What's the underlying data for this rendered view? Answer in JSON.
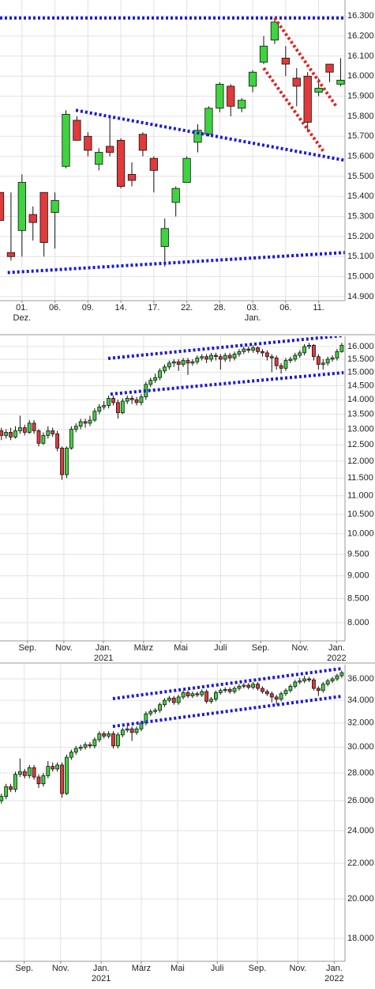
{
  "chart_data": [
    {
      "type": "candlestick",
      "log": false,
      "grid": true,
      "up_color": "#3fd33f",
      "down_color": "#e03a3a",
      "xlim": [
        0,
        31.4
      ],
      "ylim": [
        14880,
        16380
      ],
      "yticks": [
        {
          "value": 16300,
          "label": "16.300"
        },
        {
          "value": 16200,
          "label": "16.200"
        },
        {
          "value": 16100,
          "label": "16.100"
        },
        {
          "value": 16000,
          "label": "16.000"
        },
        {
          "value": 15900,
          "label": "15.900"
        },
        {
          "value": 15800,
          "label": "15.800"
        },
        {
          "value": 15700,
          "label": "15.700"
        },
        {
          "value": 15600,
          "label": "15.600"
        },
        {
          "value": 15500,
          "label": "15.500"
        },
        {
          "value": 15400,
          "label": "15.400"
        },
        {
          "value": 15300,
          "label": "15.300"
        },
        {
          "value": 15200,
          "label": "15.200"
        },
        {
          "value": 15100,
          "label": "15.100"
        },
        {
          "value": 15000,
          "label": "15.000"
        },
        {
          "value": 14900,
          "label": "14.900"
        }
      ],
      "xticks": [
        {
          "value": 2,
          "label": "01."
        },
        {
          "value": 5,
          "label": "06."
        },
        {
          "value": 8,
          "label": "09."
        },
        {
          "value": 11,
          "label": "14."
        },
        {
          "value": 14,
          "label": "17."
        },
        {
          "value": 17,
          "label": "22."
        },
        {
          "value": 20,
          "label": "28."
        },
        {
          "value": 23,
          "label": "03."
        },
        {
          "value": 26,
          "label": "06."
        },
        {
          "value": 29,
          "label": "11."
        }
      ],
      "xticks2": [
        {
          "value": 2,
          "label": "Dez."
        },
        {
          "value": 23,
          "label": "Jan."
        }
      ],
      "open": [
        15420,
        15120,
        15230,
        15310,
        15420,
        15320,
        15550,
        15780,
        15700,
        15560,
        15650,
        15680,
        15510,
        15710,
        15590,
        15150,
        15370,
        15470,
        15670,
        15710,
        15840,
        15950,
        15840,
        15950,
        16070,
        16180,
        16090,
        15990,
        16000,
        15920,
        16060,
        15960
      ],
      "high": [
        15420,
        15420,
        15510,
        15350,
        15420,
        15420,
        15830,
        15800,
        15720,
        15640,
        15800,
        15690,
        15570,
        15720,
        15600,
        15290,
        15450,
        15600,
        15760,
        15850,
        15970,
        15960,
        15890,
        16030,
        16200,
        16290,
        16150,
        16040,
        16020,
        15990,
        16060,
        16090
      ],
      "low": [
        15280,
        15080,
        15100,
        15180,
        15100,
        15140,
        15540,
        15680,
        15600,
        15530,
        15600,
        15440,
        15450,
        15600,
        15420,
        15050,
        15300,
        15470,
        15620,
        15700,
        15820,
        15800,
        15820,
        15920,
        16060,
        16160,
        16000,
        15850,
        15720,
        15900,
        15970,
        15950
      ],
      "close": [
        15280,
        15100,
        15470,
        15270,
        15170,
        15380,
        15810,
        15680,
        15630,
        15620,
        15620,
        15450,
        15480,
        15630,
        15530,
        15240,
        15440,
        15590,
        15730,
        15840,
        15960,
        15850,
        15880,
        16020,
        16150,
        16270,
        16060,
        15950,
        15770,
        15940,
        16020,
        15980
      ],
      "trend_lines": [
        {
          "color": "#1a1ad6",
          "points": [
            [
              0,
              16290
            ],
            [
              31.4,
              16290
            ]
          ]
        },
        {
          "color": "#1a1ad6",
          "points": [
            [
              6.9,
              15830
            ],
            [
              31.4,
              15580
            ]
          ]
        },
        {
          "color": "#1a1ad6",
          "points": [
            [
              0.7,
              15020
            ],
            [
              31.4,
              15120
            ]
          ]
        },
        {
          "color": "#e02020",
          "points": [
            [
              25,
              16290
            ],
            [
              30.6,
              15850
            ]
          ]
        },
        {
          "color": "#e02020",
          "points": [
            [
              24,
              16040
            ],
            [
              29.5,
              15620
            ]
          ]
        }
      ]
    },
    {
      "type": "candlestick",
      "log": true,
      "grid": true,
      "up_color": "#3fd33f",
      "down_color": "#e03a3a",
      "xlim": [
        -0.3,
        73.7
      ],
      "ylim": [
        7643,
        16418
      ],
      "yticks": [
        {
          "value": 16000,
          "label": "16.000"
        },
        {
          "value": 15500,
          "label": "15.500"
        },
        {
          "value": 15000,
          "label": "15.000"
        },
        {
          "value": 14500,
          "label": "14.500"
        },
        {
          "value": 14000,
          "label": "14.000"
        },
        {
          "value": 13500,
          "label": "13.500"
        },
        {
          "value": 13000,
          "label": "13.000"
        },
        {
          "value": 12500,
          "label": "12.500"
        },
        {
          "value": 12000,
          "label": "12.000"
        },
        {
          "value": 11500,
          "label": "11.500"
        },
        {
          "value": 11000,
          "label": "11.000"
        },
        {
          "value": 10500,
          "label": "10.500"
        },
        {
          "value": 10000,
          "label": "10.000"
        },
        {
          "value": 9500,
          "label": "9.500"
        },
        {
          "value": 9000,
          "label": "9.000"
        },
        {
          "value": 8500,
          "label": "8.500"
        },
        {
          "value": 8000,
          "label": "8.000"
        }
      ],
      "xticks": [
        {
          "value": 5.6,
          "label": "Sep."
        },
        {
          "value": 13.4,
          "label": "Nov."
        },
        {
          "value": 21.9,
          "label": "Jan."
        },
        {
          "value": 30.5,
          "label": "März"
        },
        {
          "value": 38.5,
          "label": "Mai"
        },
        {
          "value": 47,
          "label": "Juli"
        },
        {
          "value": 55.6,
          "label": "Sep."
        },
        {
          "value": 64.1,
          "label": "Nov."
        },
        {
          "value": 71.9,
          "label": "Jan."
        }
      ],
      "xticks2": [
        {
          "value": 21.9,
          "label": "2021"
        },
        {
          "value": 71.9,
          "label": "2022"
        }
      ],
      "open": [
        12950,
        12800,
        12900,
        12750,
        12950,
        13050,
        12900,
        13200,
        12950,
        12550,
        12800,
        12950,
        12850,
        12400,
        11600,
        12400,
        13000,
        13100,
        13250,
        13200,
        13300,
        13600,
        13750,
        13800,
        14050,
        13900,
        13550,
        13950,
        14050,
        14000,
        13900,
        14100,
        14550,
        14700,
        14800,
        15050,
        15200,
        15350,
        15400,
        15300,
        15450,
        15350,
        15400,
        15550,
        15600,
        15500,
        15650,
        15600,
        15500,
        15650,
        15550,
        15700,
        15800,
        15900,
        15850,
        15950,
        15800,
        15750,
        15600,
        15550,
        15250,
        15150,
        15450,
        15500,
        15650,
        15750,
        16000,
        16050,
        15600,
        15300,
        15350,
        15500,
        15550,
        15800
      ],
      "high": [
        13050,
        13000,
        13050,
        13100,
        13450,
        13150,
        13300,
        13300,
        13000,
        12900,
        13100,
        13050,
        12950,
        12450,
        12450,
        13100,
        13200,
        13350,
        13350,
        13450,
        13700,
        13850,
        13950,
        14150,
        14150,
        14000,
        14050,
        14150,
        14150,
        14100,
        14200,
        14650,
        14800,
        14950,
        15150,
        15300,
        15450,
        15500,
        15500,
        15550,
        15550,
        15500,
        15650,
        15700,
        15700,
        15750,
        15750,
        15700,
        15750,
        15750,
        15800,
        15900,
        16000,
        16000,
        16050,
        16000,
        15900,
        15850,
        15700,
        15650,
        15350,
        15550,
        15600,
        15750,
        15850,
        16100,
        16150,
        16100,
        15700,
        15500,
        15600,
        15650,
        15900,
        16150
      ],
      "low": [
        12650,
        12700,
        12650,
        12700,
        12850,
        12800,
        12850,
        12850,
        12450,
        12500,
        12700,
        12750,
        12300,
        11450,
        11500,
        12350,
        12900,
        13000,
        13050,
        13100,
        13250,
        13500,
        13650,
        13700,
        13800,
        13350,
        13500,
        13850,
        13850,
        13800,
        13800,
        14000,
        14450,
        14600,
        14700,
        14950,
        15100,
        15200,
        15050,
        15200,
        14900,
        15250,
        15300,
        15450,
        15350,
        15400,
        15450,
        15100,
        15400,
        15400,
        15450,
        15600,
        15700,
        15750,
        15750,
        15700,
        15600,
        15450,
        15000,
        15100,
        14950,
        15050,
        15350,
        15400,
        15550,
        15650,
        15900,
        15450,
        15100,
        15100,
        15250,
        15400,
        15450,
        15750
      ],
      "close": [
        12800,
        12900,
        12750,
        12950,
        13050,
        12900,
        13200,
        12950,
        12550,
        12800,
        12950,
        12850,
        12400,
        11600,
        12400,
        13000,
        13100,
        13250,
        13200,
        13300,
        13600,
        13750,
        13800,
        14050,
        13900,
        13550,
        13950,
        14050,
        14000,
        13900,
        14100,
        14550,
        14700,
        14800,
        15050,
        15200,
        15350,
        15400,
        15300,
        15450,
        15350,
        15400,
        15550,
        15600,
        15500,
        15650,
        15600,
        15500,
        15650,
        15550,
        15700,
        15800,
        15900,
        15850,
        15950,
        15800,
        15750,
        15600,
        15550,
        15250,
        15150,
        15450,
        15500,
        15650,
        15750,
        16000,
        16050,
        15600,
        15300,
        15350,
        15500,
        15550,
        15800,
        16050
      ],
      "trend_lines": [
        {
          "color": "#1a1ad6",
          "points": [
            [
              22.9,
              15530
            ],
            [
              73.4,
              16450
            ]
          ]
        },
        {
          "color": "#1a1ad6",
          "points": [
            [
              23.4,
              14200
            ],
            [
              73.4,
              14985
            ]
          ]
        }
      ]
    },
    {
      "type": "candlestick",
      "log": true,
      "grid": true,
      "up_color": "#3fd33f",
      "down_color": "#e03a3a",
      "xlim": [
        -0.3,
        73.7
      ],
      "ylim": [
        16930,
        37400
      ],
      "yticks": [
        {
          "value": 36000,
          "label": "36.000"
        },
        {
          "value": 34000,
          "label": "34.000"
        },
        {
          "value": 32000,
          "label": "32.000"
        },
        {
          "value": 30000,
          "label": "30.000"
        },
        {
          "value": 28000,
          "label": "28.000"
        },
        {
          "value": 26000,
          "label": "26.000"
        },
        {
          "value": 24000,
          "label": "24.000"
        },
        {
          "value": 22000,
          "label": "22.000"
        },
        {
          "value": 20000,
          "label": "20.000"
        },
        {
          "value": 18000,
          "label": "18.000"
        }
      ],
      "xticks": [
        {
          "value": 4.9,
          "label": "Sep."
        },
        {
          "value": 12.7,
          "label": "Nov."
        },
        {
          "value": 21.4,
          "label": "Jan."
        },
        {
          "value": 30,
          "label": "März"
        },
        {
          "value": 37.8,
          "label": "Mai"
        },
        {
          "value": 46.3,
          "label": "Juli"
        },
        {
          "value": 54.9,
          "label": "Sep."
        },
        {
          "value": 63.6,
          "label": "Nov."
        },
        {
          "value": 71.4,
          "label": "Jan."
        }
      ],
      "xticks2": [
        {
          "value": 21.4,
          "label": "2021"
        },
        {
          "value": 71.4,
          "label": "2022"
        }
      ],
      "open": [
        26000,
        26300,
        27000,
        26800,
        27900,
        28100,
        27800,
        28400,
        27700,
        27200,
        27800,
        28500,
        28300,
        28600,
        26500,
        29200,
        29600,
        29900,
        30000,
        30200,
        30100,
        30600,
        31100,
        30900,
        31100,
        30100,
        31000,
        31400,
        31500,
        31200,
        31500,
        32000,
        32800,
        33000,
        33100,
        33600,
        34000,
        34200,
        33800,
        34300,
        34700,
        34400,
        34600,
        34500,
        34800,
        33900,
        34100,
        34700,
        34900,
        35000,
        34800,
        35100,
        35300,
        35400,
        35200,
        35500,
        35100,
        34800,
        34600,
        34300,
        34100,
        34600,
        34900,
        35300,
        35700,
        35800,
        36000,
        35900,
        35100,
        34900,
        35500,
        35800,
        36000,
        36300
      ],
      "high": [
        26500,
        27200,
        27200,
        28100,
        29100,
        28300,
        28600,
        28600,
        27900,
        28000,
        28900,
        28800,
        28800,
        28800,
        29400,
        29800,
        30100,
        30200,
        30400,
        30400,
        30800,
        31300,
        31300,
        31300,
        31300,
        31200,
        31600,
        31800,
        31700,
        31700,
        32200,
        33000,
        33200,
        33300,
        33800,
        34200,
        34400,
        34400,
        34500,
        34900,
        34900,
        34800,
        34800,
        35000,
        35000,
        34300,
        34900,
        35100,
        35200,
        35200,
        35300,
        35500,
        35600,
        35600,
        35700,
        35700,
        35300,
        35000,
        34800,
        34500,
        34800,
        35100,
        35500,
        35900,
        36100,
        36300,
        36200,
        36100,
        35300,
        35700,
        36000,
        36200,
        36500,
        36800
      ],
      "low": [
        25800,
        26100,
        26600,
        26600,
        27700,
        27600,
        27600,
        27500,
        26900,
        27000,
        27600,
        28100,
        28100,
        26200,
        26400,
        29000,
        29400,
        29700,
        29800,
        29900,
        29900,
        30400,
        30700,
        30700,
        29900,
        29900,
        30800,
        31200,
        30500,
        31000,
        31300,
        31800,
        32600,
        32800,
        32900,
        33400,
        33800,
        33600,
        33600,
        34100,
        34200,
        34200,
        34300,
        34300,
        33700,
        33700,
        33900,
        34500,
        34700,
        34600,
        34600,
        34900,
        35100,
        35000,
        35000,
        34900,
        34600,
        34400,
        33800,
        33600,
        33900,
        34400,
        34700,
        35100,
        35500,
        35600,
        35700,
        34900,
        34400,
        34700,
        35300,
        35600,
        35800,
        36100
      ],
      "close": [
        26300,
        27000,
        26800,
        27900,
        28100,
        27800,
        28400,
        27700,
        27200,
        27800,
        28500,
        28300,
        28600,
        26500,
        29200,
        29600,
        29900,
        30000,
        30200,
        30100,
        30600,
        31100,
        30900,
        31100,
        30100,
        31000,
        31400,
        31500,
        31200,
        31500,
        32000,
        32800,
        33000,
        33100,
        33600,
        34000,
        34200,
        33800,
        34300,
        34700,
        34400,
        34600,
        34500,
        34800,
        33900,
        34100,
        34700,
        34900,
        35000,
        34800,
        35100,
        35300,
        35400,
        35200,
        35500,
        35100,
        34800,
        34600,
        34300,
        34100,
        34600,
        34900,
        35300,
        35700,
        35800,
        36000,
        35900,
        35100,
        34900,
        35500,
        35800,
        36000,
        36300,
        36600
      ],
      "trend_lines": [
        {
          "color": "#1a1ad6",
          "points": [
            [
              23.9,
              34150
            ],
            [
              72.9,
              37000
            ]
          ]
        },
        {
          "color": "#1a1ad6",
          "points": [
            [
              23.9,
              31710
            ],
            [
              72.9,
              34360
            ]
          ]
        }
      ]
    }
  ]
}
